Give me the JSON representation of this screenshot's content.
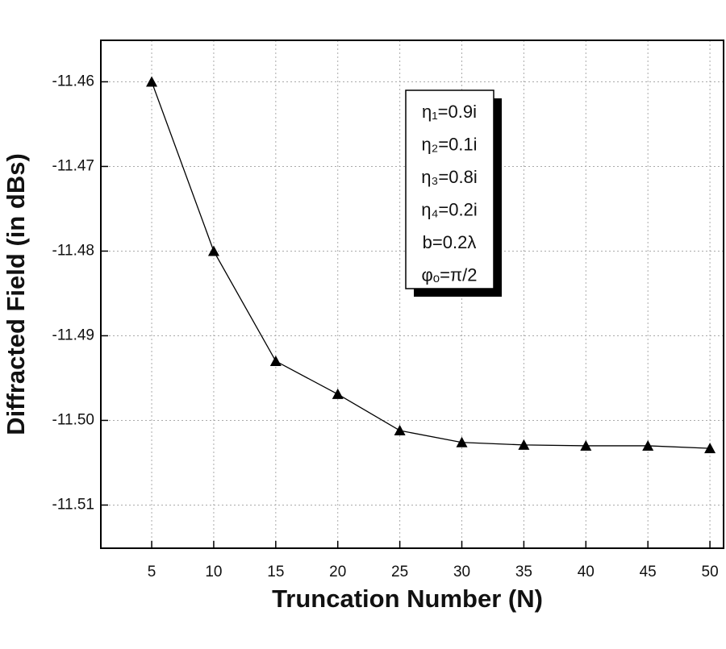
{
  "chart_data": {
    "type": "line",
    "x_label": "Truncation Number (N)",
    "y_label": "Diffracted Field (in dBs)",
    "x": [
      5,
      10,
      15,
      20,
      25,
      30,
      35,
      40,
      45,
      50
    ],
    "series": [
      {
        "color": "#000000",
        "marker": "triangle",
        "values": [
          -11.46,
          -11.48,
          -11.493,
          -11.4969,
          -11.5012,
          -11.5026,
          -11.5029,
          -11.503,
          -11.503,
          -11.5033
        ]
      }
    ],
    "xlim": [
      0.9,
      51.1
    ],
    "ylim": [
      -11.5151,
      -11.4551
    ],
    "xticks": [
      5,
      10,
      15,
      20,
      25,
      30,
      35,
      40,
      45,
      50
    ],
    "yticks": [
      -11.46,
      -11.47,
      -11.48,
      -11.49,
      {
        "value": -11.5,
        "label": "-11.50"
      },
      -11.51
    ],
    "grid": true,
    "annotations": [
      "η₁=0.9i",
      "η₂=0.1i",
      "η₃=0.8i",
      "η₄=0.2i",
      "b=0.2λ",
      "φₒ=π/2"
    ]
  }
}
